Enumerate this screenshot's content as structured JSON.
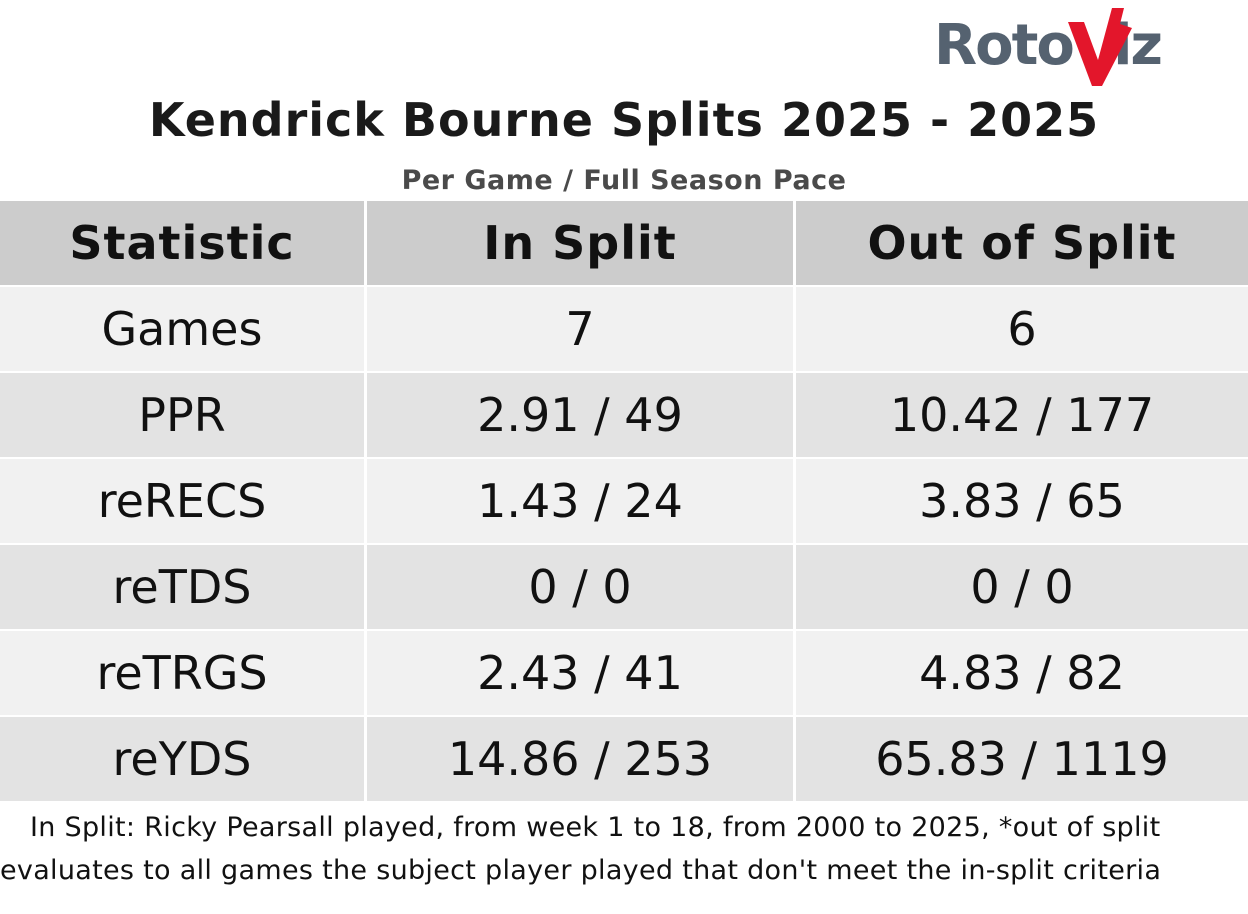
{
  "logo": {
    "text": "RotoViz",
    "colors": {
      "text": "#556270",
      "accent": "#e3162b"
    }
  },
  "title": "Kendrick Bourne Splits 2025 - 2025",
  "subtitle": "Per Game / Full Season Pace",
  "table": {
    "headers": [
      "Statistic",
      "In Split",
      "Out of Split"
    ],
    "rows": [
      {
        "stat": "Games",
        "in_split": "7",
        "out_split": "6"
      },
      {
        "stat": "PPR",
        "in_split": "2.91 / 49",
        "out_split": "10.42 / 177"
      },
      {
        "stat": "reRECS",
        "in_split": "1.43 / 24",
        "out_split": "3.83 / 65"
      },
      {
        "stat": "reTDS",
        "in_split": "0 / 0",
        "out_split": "0 / 0"
      },
      {
        "stat": "reTRGS",
        "in_split": "2.43 / 41",
        "out_split": "4.83 / 82"
      },
      {
        "stat": "reYDS",
        "in_split": "14.86 / 253",
        "out_split": "65.83 / 1119"
      }
    ]
  },
  "footnote": "In Split: Ricky Pearsall played, from week 1 to 18, from 2000 to 2025,  *out of split evaluates to all games the subject player played that don't meet the in-split criteria"
}
